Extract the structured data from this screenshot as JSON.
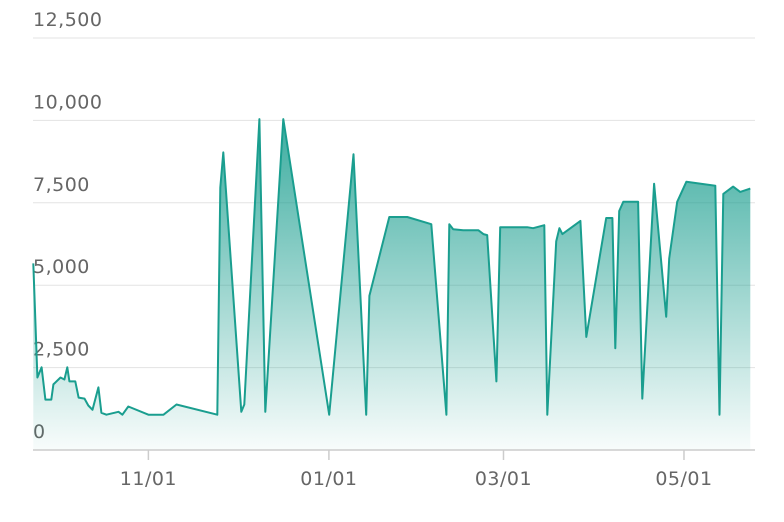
{
  "chart_data": {
    "type": "area",
    "color": "#1a9e8f",
    "grid": true,
    "xlim": [
      -39,
      205
    ],
    "xticks": [
      {
        "value": 0,
        "label": "11/01"
      },
      {
        "value": 61,
        "label": "01/01"
      },
      {
        "value": 120,
        "label": "03/01"
      },
      {
        "value": 181,
        "label": "05/01"
      }
    ],
    "ylim": [
      0,
      12500
    ],
    "yticks": [
      0,
      {
        "value": 2500,
        "label": "2,500"
      },
      {
        "value": 5000,
        "label": "5,000"
      },
      {
        "value": 7500,
        "label": "7,500"
      },
      {
        "value": 10000,
        "label": "10,000"
      },
      {
        "value": 12500,
        "label": "12,500"
      }
    ],
    "x": [
      -38.9,
      -37.5,
      -36.1,
      -34.8,
      -32.8,
      -32.1,
      -29.7,
      -28.4,
      -27.4,
      -26.7,
      -24.7,
      -23.6,
      -21.6,
      -20.3,
      -18.9,
      -16.9,
      -15.9,
      -14.2,
      -10.1,
      -8.8,
      -6.8,
      0,
      5.1,
      9.5,
      23.3,
      24.3,
      25.3,
      31.4,
      32.4,
      37.5,
      39.5,
      45.6,
      61.1,
      69.3,
      73.6,
      74.7,
      81.4,
      87.5,
      95.6,
      100.7,
      101.7,
      103,
      106.4,
      111.5,
      113.2,
      114.5,
      117.6,
      118.9,
      128,
      130,
      133.8,
      134.8,
      137.8,
      138.9,
      139.9,
      146,
      148,
      154.7,
      156.8,
      157.8,
      159.1,
      160.5,
      165.5,
      166.9,
      170.9,
      175,
      176,
      178.7,
      181.8,
      191.6,
      193,
      194.3,
      197.6,
      200,
      203.4
    ],
    "values": [
      5660,
      2200,
      2510,
      1530,
      1530,
      1990,
      2200,
      2140,
      2510,
      2080,
      2080,
      1590,
      1560,
      1350,
      1220,
      1900,
      1130,
      1070,
      1160,
      1070,
      1320,
      1070,
      1070,
      1380,
      1070,
      7960,
      9030,
      1160,
      1380,
      10040,
      1160,
      10040,
      1070,
      8970,
      1070,
      4680,
      7070,
      7070,
      6850,
      1070,
      6850,
      6700,
      6670,
      6670,
      6550,
      6520,
      2080,
      6760,
      6760,
      6730,
      6820,
      1070,
      6330,
      6730,
      6550,
      6950,
      3430,
      7040,
      7040,
      3090,
      7250,
      7530,
      7530,
      1560,
      8080,
      4040,
      5810,
      7530,
      8140,
      8020,
      1070,
      7770,
      7990,
      7830,
      7930
    ]
  }
}
